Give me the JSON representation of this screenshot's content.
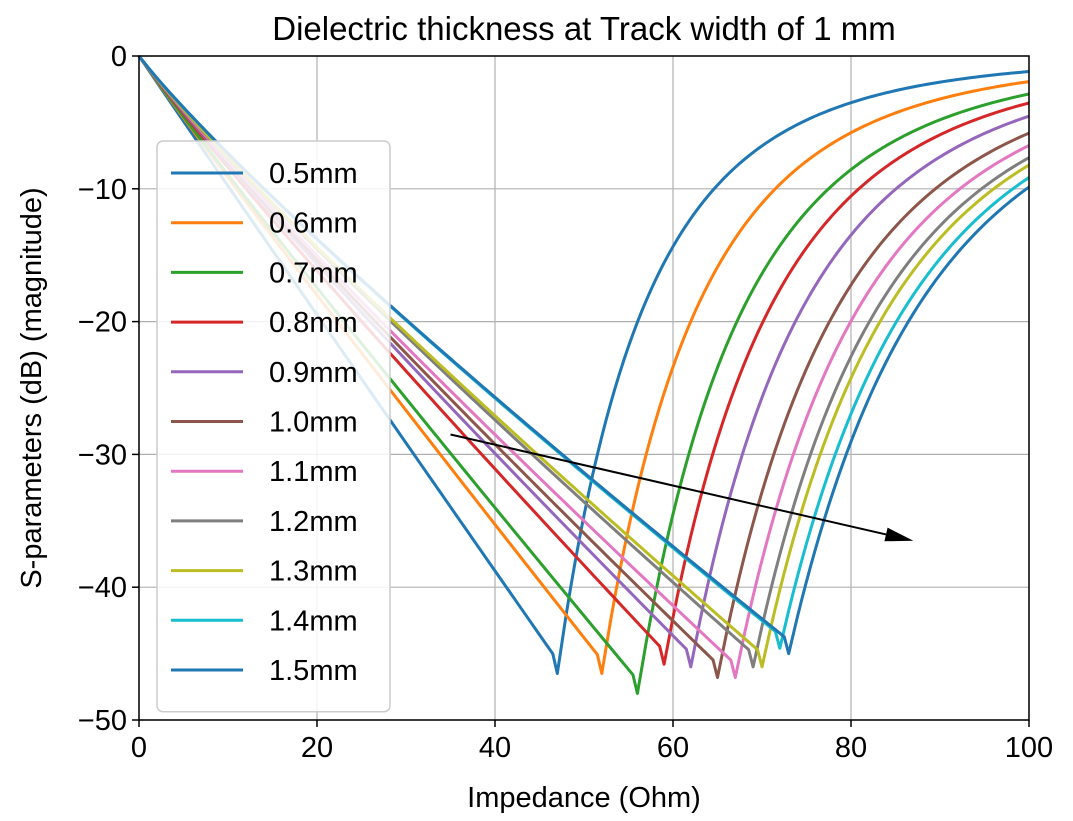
{
  "chart_data": {
    "type": "line",
    "title": "Dielectric thickness at Track width of 1 mm",
    "xlabel": "Impedance (Ohm)",
    "ylabel": "S-parameters (dB) (magnitude)",
    "xlim": [
      0,
      100
    ],
    "ylim": [
      -50,
      0
    ],
    "xticks": [
      0,
      20,
      40,
      60,
      80,
      100
    ],
    "xtick_labels": [
      "0",
      "20",
      "40",
      "60",
      "80",
      "100"
    ],
    "yticks": [
      0,
      -10,
      -20,
      -30,
      -40,
      -50
    ],
    "ytick_labels": [
      "0",
      "−10",
      "−20",
      "−30",
      "−40",
      "−50"
    ],
    "grid": true,
    "legend_position": "left",
    "annotation_arrow": {
      "from": [
        35,
        -28.5
      ],
      "to": [
        87,
        -36.5
      ],
      "color": "#000000"
    },
    "series": [
      {
        "name": "0.5mm",
        "color": "#1f77b4",
        "min_x": 47,
        "min_y": -46.5
      },
      {
        "name": "0.6mm",
        "color": "#ff7f0e",
        "min_x": 52,
        "min_y": -46.5
      },
      {
        "name": "0.7mm",
        "color": "#2ca02c",
        "min_x": 56,
        "min_y": -48.0
      },
      {
        "name": "0.8mm",
        "color": "#d62728",
        "min_x": 59,
        "min_y": -45.8
      },
      {
        "name": "0.9mm",
        "color": "#9467bd",
        "min_x": 62,
        "min_y": -46.0
      },
      {
        "name": "1.0mm",
        "color": "#8c564b",
        "min_x": 65,
        "min_y": -46.8
      },
      {
        "name": "1.1mm",
        "color": "#e377c2",
        "min_x": 67,
        "min_y": -46.8
      },
      {
        "name": "1.2mm",
        "color": "#7f7f7f",
        "min_x": 69,
        "min_y": -46.0
      },
      {
        "name": "1.3mm",
        "color": "#bcbd22",
        "min_x": 70,
        "min_y": -46.0
      },
      {
        "name": "1.4mm",
        "color": "#17becf",
        "min_x": 72,
        "min_y": -44.6
      },
      {
        "name": "1.5mm",
        "color": "#1f77b4",
        "min_x": 73,
        "min_y": -45.0
      }
    ]
  }
}
